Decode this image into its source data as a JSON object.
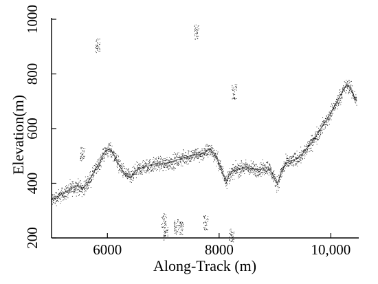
{
  "chart_data": {
    "type": "scatter",
    "title": "",
    "xlabel": "Along-Track (m)",
    "ylabel": "Elevation(m)",
    "xlim": [
      5000,
      10500
    ],
    "ylim": [
      200,
      1000
    ],
    "x_ticks": [
      {
        "value": 6000,
        "label": "6000"
      },
      {
        "value": 8000,
        "label": "8000"
      },
      {
        "value": 10000,
        "label": "10,000"
      }
    ],
    "y_ticks": [
      {
        "value": 200,
        "label": "200"
      },
      {
        "value": 400,
        "label": "400"
      },
      {
        "value": 600,
        "label": "600"
      },
      {
        "value": 800,
        "label": "800"
      },
      {
        "value": 1000,
        "label": "1000"
      }
    ],
    "grid": false,
    "legend": "none",
    "marker_color": "#000000",
    "series": [
      {
        "kind": "ground-profile",
        "x": [
          5000,
          5150,
          5300,
          5450,
          5560,
          5620,
          5700,
          5780,
          5860,
          5920,
          5980,
          6040,
          6080,
          6140,
          6200,
          6260,
          6320,
          6380,
          6420,
          6480,
          6540,
          6600,
          6680,
          6760,
          6840,
          6920,
          7000,
          7080,
          7160,
          7240,
          7320,
          7400,
          7480,
          7560,
          7640,
          7720,
          7790,
          7840,
          7900,
          7960,
          8020,
          8080,
          8130,
          8180,
          8250,
          8320,
          8400,
          8480,
          8560,
          8640,
          8720,
          8800,
          8880,
          8960,
          9000,
          9050,
          9110,
          9180,
          9260,
          9340,
          9420,
          9500,
          9580,
          9660,
          9740,
          9820,
          9900,
          9980,
          10060,
          10140,
          10220,
          10280,
          10340,
          10400,
          10460
        ],
        "y": [
          340,
          355,
          375,
          390,
          380,
          395,
          420,
          450,
          475,
          505,
          520,
          525,
          515,
          495,
          470,
          450,
          435,
          425,
          420,
          440,
          450,
          455,
          460,
          465,
          470,
          475,
          470,
          475,
          480,
          485,
          490,
          495,
          500,
          505,
          505,
          510,
          520,
          525,
          510,
          490,
          460,
          430,
          410,
          430,
          445,
          450,
          455,
          460,
          455,
          450,
          450,
          455,
          460,
          430,
          410,
          400,
          440,
          470,
          480,
          485,
          495,
          510,
          530,
          550,
          575,
          600,
          625,
          650,
          680,
          710,
          740,
          760,
          750,
          725,
          700
        ]
      },
      {
        "kind": "outlier-clusters",
        "x": [
          5550,
          5820,
          7010,
          7040,
          7230,
          7310,
          7590,
          7760,
          8220,
          8270
        ],
        "y": [
          510,
          905,
          265,
          220,
          240,
          232,
          955,
          255,
          210,
          735
        ]
      }
    ]
  }
}
